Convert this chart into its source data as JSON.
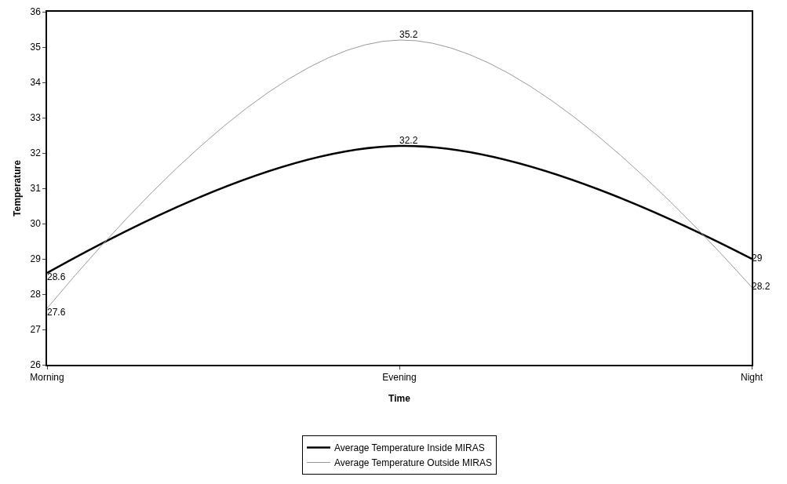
{
  "chart_data": {
    "type": "line",
    "xlabel": "Time",
    "ylabel": "Temperature",
    "categories": [
      "Morning",
      "Evening",
      "Night"
    ],
    "series": [
      {
        "name": "Average Temperature Inside MIRAS",
        "color": "#000000",
        "values": [
          28.6,
          32.2,
          29
        ]
      },
      {
        "name": "Average Temperature Outside MIRAS",
        "color": "#9a9a9a",
        "values": [
          27.6,
          35.2,
          28.2
        ]
      }
    ],
    "ylim": [
      26,
      36
    ],
    "yticks": [
      26,
      27,
      28,
      29,
      30,
      31,
      32,
      33,
      34,
      35,
      36
    ],
    "grid": false,
    "legend": "bottom",
    "marker": "none",
    "data_labels": true
  }
}
